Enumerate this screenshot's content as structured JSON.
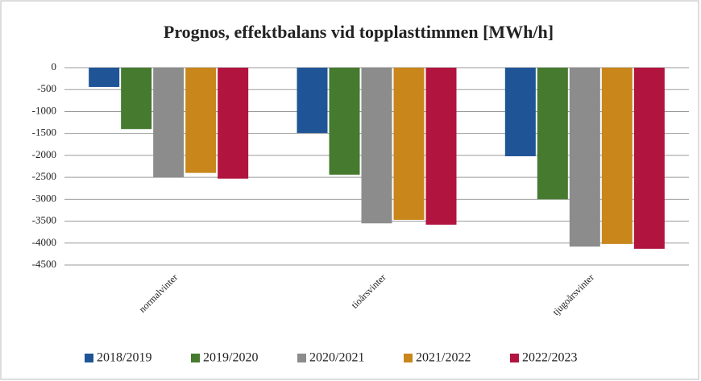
{
  "chart_data": {
    "type": "bar",
    "title": "Prognos, effektbalans vid topplasttimmen [MWh/h]",
    "categories": [
      "normalvinter",
      "tioårsvinter",
      "tjugoårsvinter"
    ],
    "series": [
      {
        "name": "2018/2019",
        "color": "#1f5597",
        "values": [
          -440,
          -1490,
          -2020
        ]
      },
      {
        "name": "2019/2020",
        "color": "#457a2f",
        "values": [
          -1400,
          -2440,
          -3000
        ]
      },
      {
        "name": "2020/2021",
        "color": "#8c8c8c",
        "values": [
          -2500,
          -3550,
          -4080
        ]
      },
      {
        "name": "2021/2022",
        "color": "#c8861b",
        "values": [
          -2400,
          -3470,
          -4020
        ]
      },
      {
        "name": "2022/2023",
        "color": "#b0143f",
        "values": [
          -2530,
          -3580,
          -4130
        ]
      }
    ],
    "ylim": [
      -4500,
      0
    ],
    "yticks": [
      0,
      -500,
      -1000,
      -1500,
      -2000,
      -2500,
      -3000,
      -3500,
      -4000,
      -4500
    ],
    "grid": true
  }
}
